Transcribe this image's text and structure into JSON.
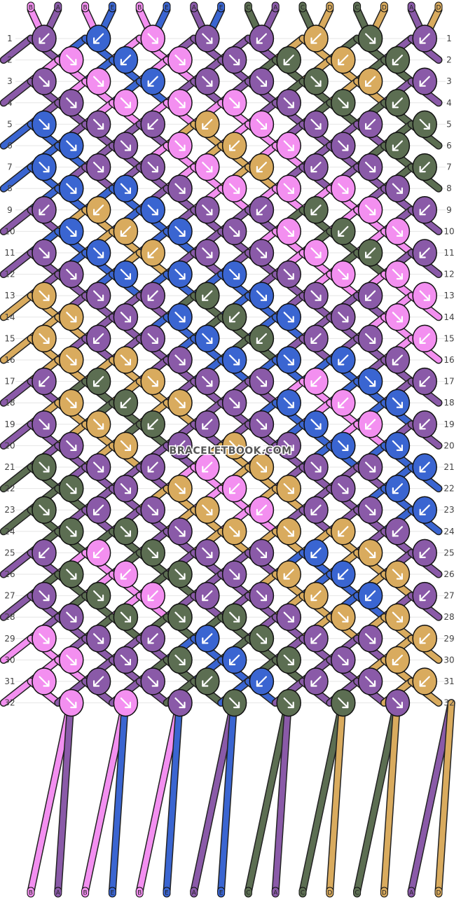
{
  "colors": {
    "A": "#8a5aa8",
    "B": "#f38ff0",
    "C": "#5c6e52",
    "D": "#d9ab5e",
    "E": "#3a65d1"
  },
  "strands_top": [
    "B",
    "A",
    "B",
    "E",
    "B",
    "E",
    "A",
    "E",
    "C",
    "A",
    "C",
    "D",
    "C",
    "D",
    "A",
    "D"
  ],
  "strands_bottom": [
    "B",
    "A",
    "B",
    "E",
    "B",
    "E",
    "A",
    "E",
    "C",
    "A",
    "C",
    "D",
    "C",
    "D",
    "A",
    "D"
  ],
  "row_count": 32,
  "row_numbers": [
    "1",
    "2",
    "3",
    "4",
    "5",
    "6",
    "7",
    "8",
    "9",
    "10",
    "11",
    "12",
    "13",
    "14",
    "15",
    "16",
    "17",
    "18",
    "19",
    "20",
    "21",
    "22",
    "23",
    "24",
    "25",
    "26",
    "27",
    "28",
    "29",
    "30",
    "31",
    "32"
  ],
  "watermark": "BRACELETBOOK.COM",
  "knots": [
    [
      [
        "A",
        "L"
      ],
      [
        "E",
        "L"
      ],
      [
        "B",
        "R"
      ],
      [
        "A",
        "R"
      ],
      [
        "A",
        "L"
      ],
      [
        "D",
        "L"
      ],
      [
        "C",
        "R"
      ],
      [
        "A",
        "L"
      ]
    ],
    [
      [
        "B",
        "R"
      ],
      [
        "E",
        "L"
      ],
      [
        "B",
        "R"
      ],
      [
        "A",
        "R"
      ],
      [
        "C",
        "L"
      ],
      [
        "D",
        "L"
      ],
      [
        "C",
        "L"
      ]
    ],
    [
      [
        "A",
        "R"
      ],
      [
        "B",
        "R"
      ],
      [
        "E",
        "L"
      ],
      [
        "A",
        "R"
      ],
      [
        "A",
        "R"
      ],
      [
        "C",
        "R"
      ],
      [
        "D",
        "L"
      ],
      [
        "A",
        "L"
      ]
    ],
    [
      [
        "A",
        "R"
      ],
      [
        "B",
        "R"
      ],
      [
        "B",
        "R"
      ],
      [
        "B",
        "R"
      ],
      [
        "A",
        "R"
      ],
      [
        "C",
        "R"
      ],
      [
        "C",
        "L"
      ]
    ],
    [
      [
        "E",
        "R"
      ],
      [
        "A",
        "R"
      ],
      [
        "A",
        "L"
      ],
      [
        "D",
        "L"
      ],
      [
        "B",
        "R"
      ],
      [
        "A",
        "R"
      ],
      [
        "A",
        "L"
      ],
      [
        "C",
        "R"
      ]
    ],
    [
      [
        "E",
        "R"
      ],
      [
        "A",
        "R"
      ],
      [
        "B",
        "R"
      ],
      [
        "D",
        "L"
      ],
      [
        "B",
        "R"
      ],
      [
        "A",
        "R"
      ],
      [
        "C",
        "L"
      ]
    ],
    [
      [
        "E",
        "R"
      ],
      [
        "A",
        "R"
      ],
      [
        "A",
        "R"
      ],
      [
        "B",
        "R"
      ],
      [
        "D",
        "L"
      ],
      [
        "A",
        "L"
      ],
      [
        "A",
        "R"
      ],
      [
        "C",
        "L"
      ]
    ],
    [
      [
        "E",
        "R"
      ],
      [
        "E",
        "R"
      ],
      [
        "A",
        "R"
      ],
      [
        "B",
        "R"
      ],
      [
        "B",
        "R"
      ],
      [
        "B",
        "R"
      ],
      [
        "A",
        "R"
      ]
    ],
    [
      [
        "A",
        "L"
      ],
      [
        "D",
        "L"
      ],
      [
        "E",
        "R"
      ],
      [
        "A",
        "R"
      ],
      [
        "A",
        "L"
      ],
      [
        "C",
        "L"
      ],
      [
        "B",
        "R"
      ],
      [
        "A",
        "L"
      ]
    ],
    [
      [
        "E",
        "R"
      ],
      [
        "D",
        "L"
      ],
      [
        "E",
        "R"
      ],
      [
        "A",
        "R"
      ],
      [
        "B",
        "R"
      ],
      [
        "C",
        "L"
      ],
      [
        "B",
        "R"
      ]
    ],
    [
      [
        "A",
        "R"
      ],
      [
        "E",
        "R"
      ],
      [
        "D",
        "L"
      ],
      [
        "A",
        "R"
      ],
      [
        "A",
        "R"
      ],
      [
        "B",
        "R"
      ],
      [
        "C",
        "L"
      ],
      [
        "A",
        "L"
      ]
    ],
    [
      [
        "A",
        "R"
      ],
      [
        "E",
        "R"
      ],
      [
        "E",
        "R"
      ],
      [
        "E",
        "R"
      ],
      [
        "A",
        "R"
      ],
      [
        "B",
        "R"
      ],
      [
        "B",
        "R"
      ]
    ],
    [
      [
        "D",
        "R"
      ],
      [
        "A",
        "R"
      ],
      [
        "A",
        "L"
      ],
      [
        "C",
        "L"
      ],
      [
        "E",
        "R"
      ],
      [
        "A",
        "R"
      ],
      [
        "A",
        "L"
      ],
      [
        "B",
        "R"
      ]
    ],
    [
      [
        "D",
        "R"
      ],
      [
        "A",
        "R"
      ],
      [
        "E",
        "R"
      ],
      [
        "C",
        "L"
      ],
      [
        "E",
        "R"
      ],
      [
        "A",
        "R"
      ],
      [
        "B",
        "R"
      ]
    ],
    [
      [
        "D",
        "R"
      ],
      [
        "A",
        "L"
      ],
      [
        "A",
        "R"
      ],
      [
        "E",
        "R"
      ],
      [
        "C",
        "L"
      ],
      [
        "A",
        "L"
      ],
      [
        "A",
        "R"
      ],
      [
        "B",
        "L"
      ]
    ],
    [
      [
        "D",
        "R"
      ],
      [
        "D",
        "R"
      ],
      [
        "A",
        "R"
      ],
      [
        "E",
        "R"
      ],
      [
        "E",
        "R"
      ],
      [
        "E",
        "L"
      ],
      [
        "A",
        "L"
      ]
    ],
    [
      [
        "A",
        "L"
      ],
      [
        "C",
        "L"
      ],
      [
        "D",
        "R"
      ],
      [
        "A",
        "R"
      ],
      [
        "A",
        "R"
      ],
      [
        "B",
        "L"
      ],
      [
        "E",
        "R"
      ],
      [
        "A",
        "L"
      ]
    ],
    [
      [
        "D",
        "R"
      ],
      [
        "C",
        "L"
      ],
      [
        "D",
        "R"
      ],
      [
        "A",
        "R"
      ],
      [
        "E",
        "R"
      ],
      [
        "B",
        "L"
      ],
      [
        "E",
        "R"
      ]
    ],
    [
      [
        "A",
        "R"
      ],
      [
        "D",
        "R"
      ],
      [
        "C",
        "L"
      ],
      [
        "A",
        "L"
      ],
      [
        "A",
        "R"
      ],
      [
        "E",
        "R"
      ],
      [
        "B",
        "L"
      ],
      [
        "A",
        "L"
      ]
    ],
    [
      [
        "A",
        "R"
      ],
      [
        "D",
        "R"
      ],
      [
        "A",
        "L"
      ],
      [
        "D",
        "R"
      ],
      [
        "A",
        "R"
      ],
      [
        "E",
        "R"
      ],
      [
        "E",
        "R"
      ]
    ],
    [
      [
        "C",
        "R"
      ],
      [
        "A",
        "R"
      ],
      [
        "A",
        "L"
      ],
      [
        "B",
        "L"
      ],
      [
        "D",
        "R"
      ],
      [
        "A",
        "R"
      ],
      [
        "A",
        "R"
      ],
      [
        "E",
        "L"
      ]
    ],
    [
      [
        "C",
        "R"
      ],
      [
        "A",
        "R"
      ],
      [
        "D",
        "R"
      ],
      [
        "B",
        "L"
      ],
      [
        "D",
        "R"
      ],
      [
        "A",
        "R"
      ],
      [
        "E",
        "L"
      ]
    ],
    [
      [
        "C",
        "R"
      ],
      [
        "A",
        "L"
      ],
      [
        "A",
        "R"
      ],
      [
        "D",
        "R"
      ],
      [
        "B",
        "L"
      ],
      [
        "A",
        "L"
      ],
      [
        "A",
        "R"
      ],
      [
        "E",
        "L"
      ]
    ],
    [
      [
        "C",
        "R"
      ],
      [
        "C",
        "R"
      ],
      [
        "A",
        "R"
      ],
      [
        "D",
        "R"
      ],
      [
        "D",
        "R"
      ],
      [
        "D",
        "L"
      ],
      [
        "A",
        "L"
      ]
    ],
    [
      [
        "A",
        "L"
      ],
      [
        "B",
        "L"
      ],
      [
        "C",
        "R"
      ],
      [
        "A",
        "R"
      ],
      [
        "A",
        "R"
      ],
      [
        "E",
        "L"
      ],
      [
        "D",
        "R"
      ],
      [
        "A",
        "L"
      ]
    ],
    [
      [
        "C",
        "R"
      ],
      [
        "B",
        "L"
      ],
      [
        "C",
        "R"
      ],
      [
        "A",
        "R"
      ],
      [
        "D",
        "L"
      ],
      [
        "E",
        "L"
      ],
      [
        "D",
        "R"
      ]
    ],
    [
      [
        "A",
        "R"
      ],
      [
        "C",
        "R"
      ],
      [
        "B",
        "L"
      ],
      [
        "A",
        "L"
      ],
      [
        "A",
        "R"
      ],
      [
        "D",
        "L"
      ],
      [
        "E",
        "L"
      ],
      [
        "A",
        "L"
      ]
    ],
    [
      [
        "A",
        "R"
      ],
      [
        "C",
        "R"
      ],
      [
        "C",
        "R"
      ],
      [
        "C",
        "R"
      ],
      [
        "A",
        "R"
      ],
      [
        "D",
        "R"
      ],
      [
        "D",
        "R"
      ]
    ],
    [
      [
        "B",
        "R"
      ],
      [
        "A",
        "R"
      ],
      [
        "A",
        "L"
      ],
      [
        "E",
        "L"
      ],
      [
        "C",
        "R"
      ],
      [
        "A",
        "L"
      ],
      [
        "A",
        "R"
      ],
      [
        "D",
        "L"
      ]
    ],
    [
      [
        "B",
        "R"
      ],
      [
        "A",
        "R"
      ],
      [
        "C",
        "R"
      ],
      [
        "E",
        "L"
      ],
      [
        "C",
        "R"
      ],
      [
        "A",
        "R"
      ],
      [
        "D",
        "L"
      ]
    ],
    [
      [
        "B",
        "R"
      ],
      [
        "A",
        "L"
      ],
      [
        "A",
        "R"
      ],
      [
        "C",
        "L"
      ],
      [
        "E",
        "L"
      ],
      [
        "A",
        "L"
      ],
      [
        "A",
        "R"
      ],
      [
        "D",
        "L"
      ]
    ],
    [
      [
        "B",
        "R"
      ],
      [
        "B",
        "R"
      ],
      [
        "A",
        "R"
      ],
      [
        "C",
        "R"
      ],
      [
        "C",
        "R"
      ],
      [
        "C",
        "R"
      ],
      [
        "A",
        "R"
      ]
    ]
  ]
}
